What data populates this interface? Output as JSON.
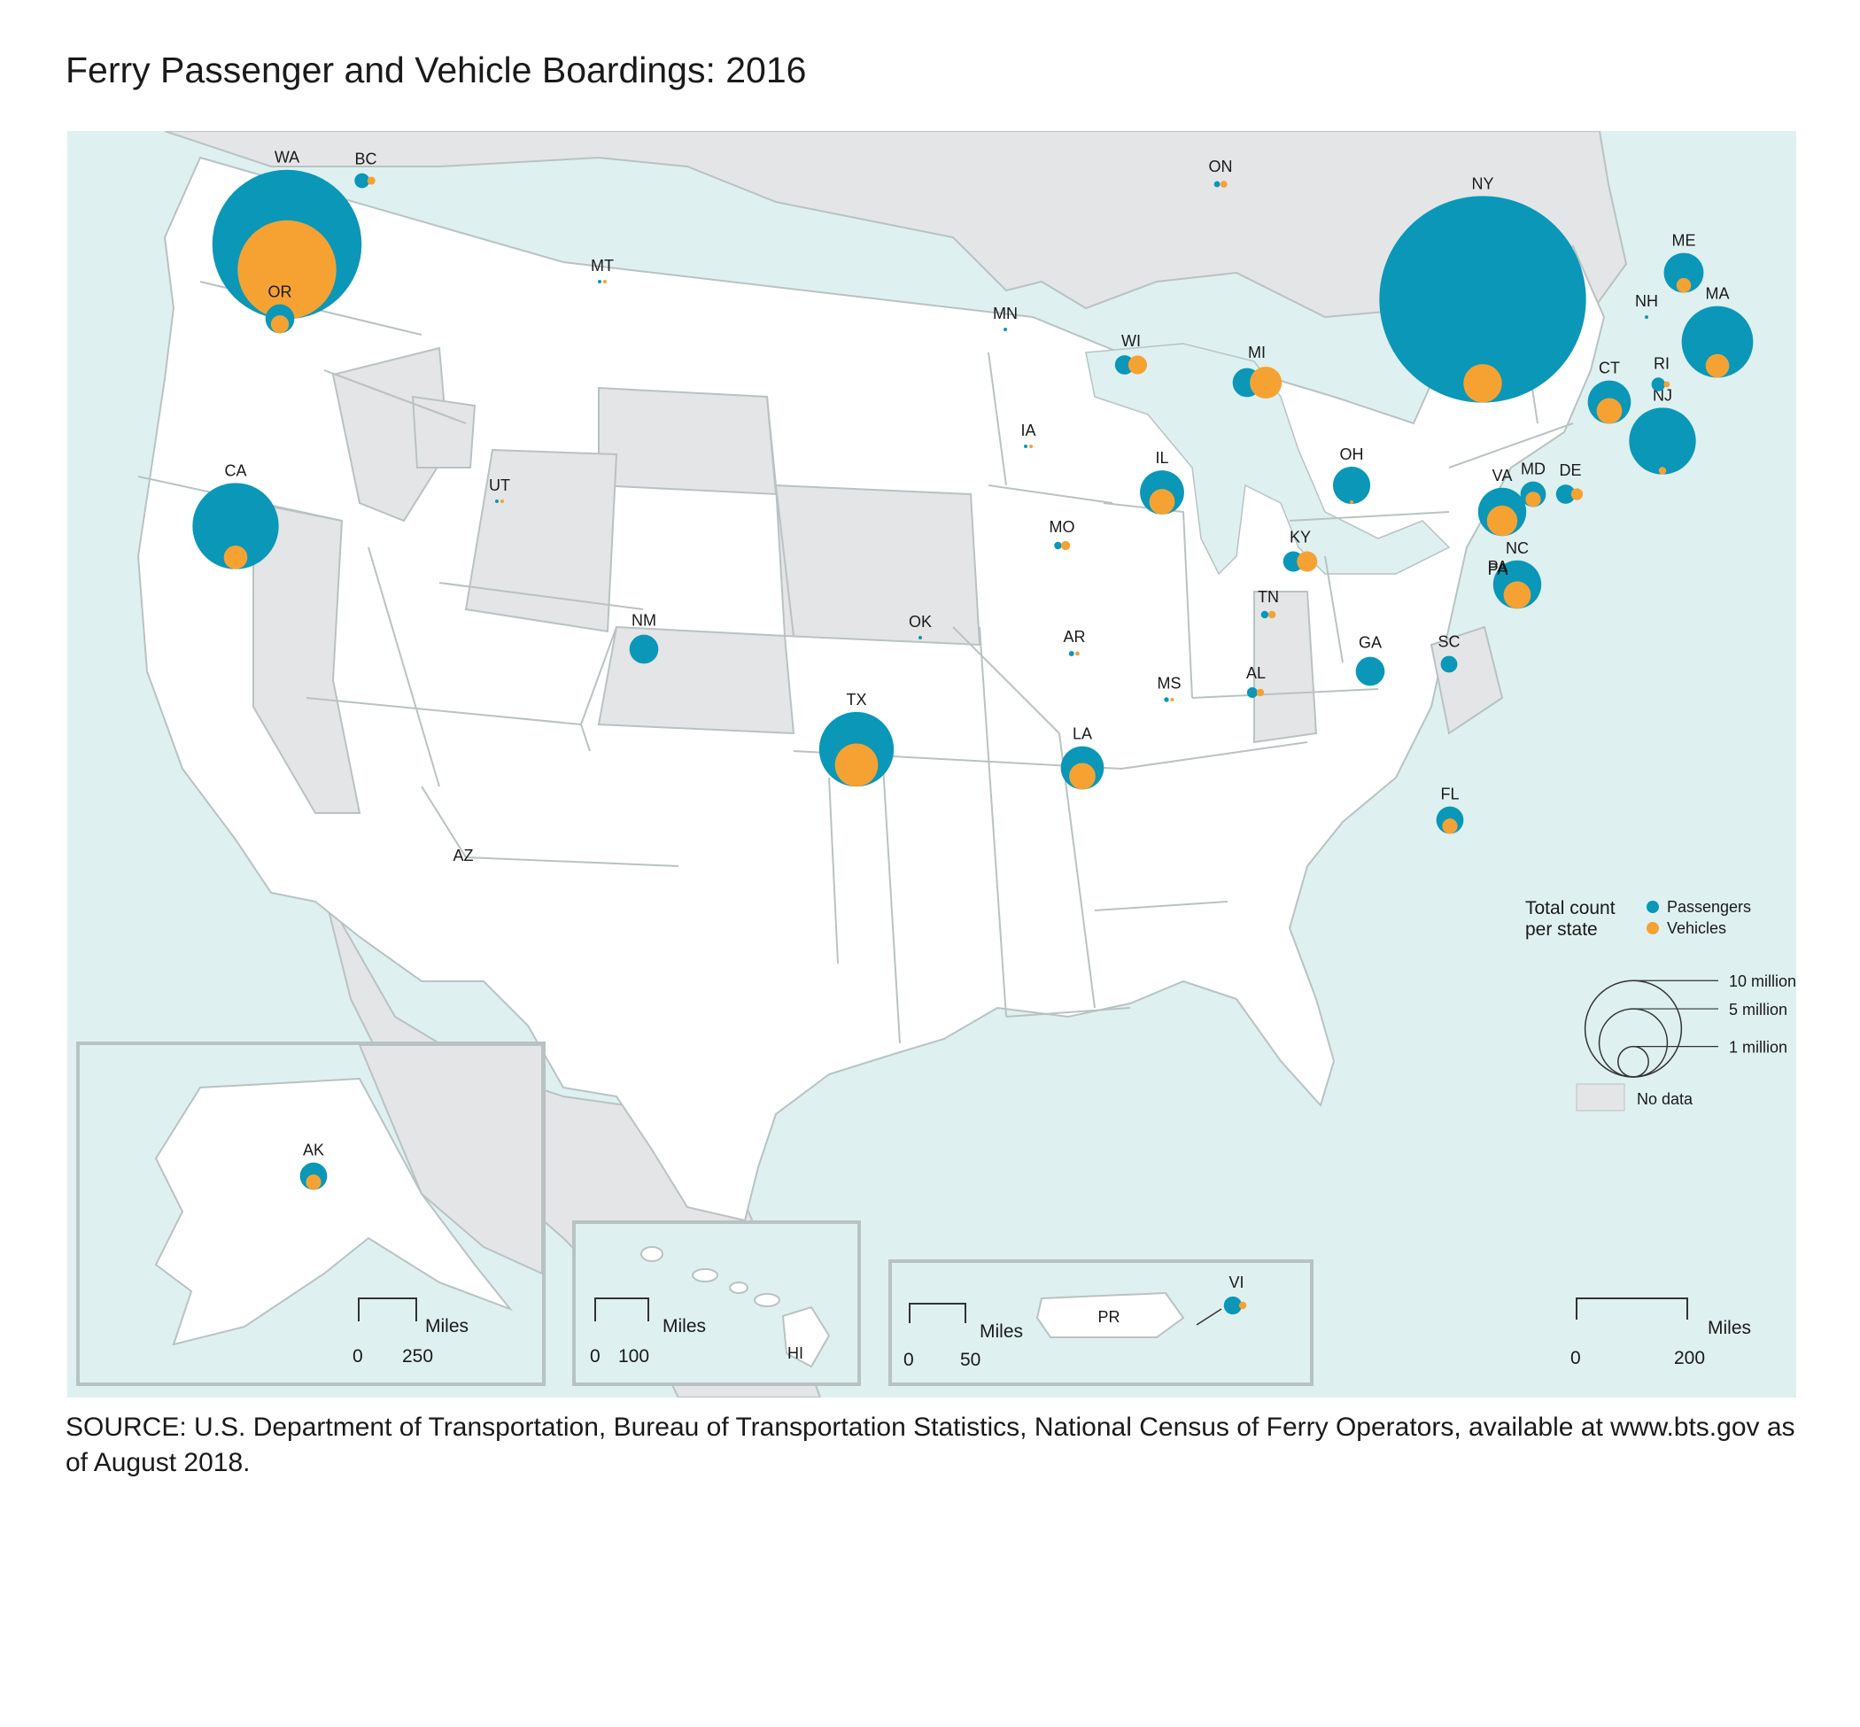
{
  "title": "Ferry Passenger and Vehicle Boardings: 2016",
  "source": "SOURCE: U.S. Department of Transportation, Bureau of Transportation Statistics, National Census of Ferry Operators, available at www.bts.gov as of August 2018.",
  "colors": {
    "passengers": "#0a97b8",
    "vehicles": "#f5a233",
    "water": "#dff0f0",
    "land": "#ffffff",
    "no_data": "#e4e5e6",
    "border": "#b9c2c2"
  },
  "legend": {
    "title_line1": "Total count",
    "title_line2": "per state",
    "passengers_label": "Passengers",
    "vehicles_label": "Vehicles",
    "size_labels": [
      "10 million",
      "5 million",
      "1 million"
    ],
    "size_values": [
      10000000,
      5000000,
      1000000
    ],
    "no_data_label": "No data"
  },
  "scale_bars": {
    "main": {
      "unit": "Miles",
      "start": "0",
      "end": "200"
    },
    "alaska": {
      "unit": "Miles",
      "start": "0",
      "end": "250"
    },
    "hawaii": {
      "unit": "Miles",
      "start": "0",
      "end": "100"
    },
    "puerto_rico": {
      "unit": "Miles",
      "start": "0",
      "end": "50"
    }
  },
  "region_labels": [
    "AZ",
    "PA",
    "PR",
    "HI"
  ],
  "chart_data": {
    "type": "proportional-symbol map",
    "units": "boardings",
    "series": [
      {
        "name": "Passengers"
      },
      {
        "name": "Vehicles"
      }
    ],
    "states": [
      {
        "code": "WA",
        "passengers": 24000000,
        "vehicles": 10500000
      },
      {
        "code": "BC",
        "passengers": 240000,
        "vehicles": 70000
      },
      {
        "code": "OR",
        "passengers": 900000,
        "vehicles": 350000
      },
      {
        "code": "CA",
        "passengers": 8000000,
        "vehicles": 600000
      },
      {
        "code": "MT",
        "passengers": 1000,
        "vehicles": 1000
      },
      {
        "code": "UT",
        "passengers": 3000,
        "vehicles": 1000
      },
      {
        "code": "NM",
        "passengers": 900000,
        "vehicles": 0
      },
      {
        "code": "TX",
        "passengers": 6000000,
        "vehicles": 2000000
      },
      {
        "code": "OK",
        "passengers": 5000,
        "vehicles": 0
      },
      {
        "code": "MN",
        "passengers": 3000,
        "vehicles": 0
      },
      {
        "code": "IA",
        "passengers": 10000,
        "vehicles": 2000
      },
      {
        "code": "MO",
        "passengers": 60000,
        "vehicles": 90000
      },
      {
        "code": "AR",
        "passengers": 30000,
        "vehicles": 20000
      },
      {
        "code": "LA",
        "passengers": 2000000,
        "vehicles": 750000
      },
      {
        "code": "WI",
        "passengers": 400000,
        "vehicles": 380000
      },
      {
        "code": "IL",
        "passengers": 2100000,
        "vehicles": 700000
      },
      {
        "code": "MI",
        "passengers": 900000,
        "vehicles": 1100000
      },
      {
        "code": "KY",
        "passengers": 450000,
        "vehicles": 450000
      },
      {
        "code": "TN",
        "passengers": 60000,
        "vehicles": 60000
      },
      {
        "code": "MS",
        "passengers": 25000,
        "vehicles": 3000
      },
      {
        "code": "AL",
        "passengers": 120000,
        "vehicles": 60000
      },
      {
        "code": "GA",
        "passengers": 900000,
        "vehicles": 0
      },
      {
        "code": "FL",
        "passengers": 800000,
        "vehicles": 250000
      },
      {
        "code": "SC",
        "passengers": 300000,
        "vehicles": 0
      },
      {
        "code": "NC",
        "passengers": 2500000,
        "vehicles": 800000
      },
      {
        "code": "VA",
        "passengers": 2500000,
        "vehicles": 1000000
      },
      {
        "code": "OH",
        "passengers": 1500000,
        "vehicles": 15000
      },
      {
        "code": "PA",
        "passengers": 1500,
        "vehicles": 0
      },
      {
        "code": "MD",
        "passengers": 700000,
        "vehicles": 250000
      },
      {
        "code": "DE",
        "passengers": 400000,
        "vehicles": 150000
      },
      {
        "code": "NJ",
        "passengers": 4800000,
        "vehicles": 60000
      },
      {
        "code": "NY",
        "passengers": 46000000,
        "vehicles": 1600000
      },
      {
        "code": "CT",
        "passengers": 2000000,
        "vehicles": 700000
      },
      {
        "code": "RI",
        "passengers": 200000,
        "vehicles": 40000
      },
      {
        "code": "MA",
        "passengers": 5500000,
        "vehicles": 600000
      },
      {
        "code": "NH",
        "passengers": 3000,
        "vehicles": 0
      },
      {
        "code": "ME",
        "passengers": 1700000,
        "vehicles": 230000
      },
      {
        "code": "ON",
        "passengers": 40000,
        "vehicles": 50000
      },
      {
        "code": "AK",
        "passengers": 800000,
        "vehicles": 250000
      },
      {
        "code": "VI",
        "passengers": 350000,
        "vehicles": 60000
      }
    ]
  }
}
